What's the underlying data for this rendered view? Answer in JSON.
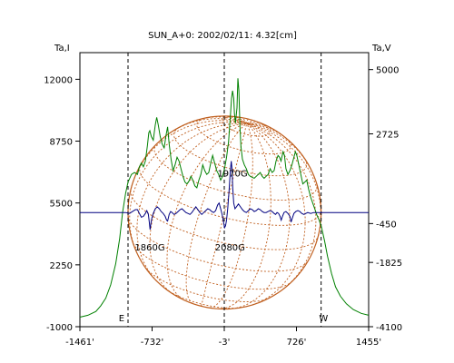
{
  "chart_data": {
    "type": "line",
    "title": "SUN_A+0: 2002/02/11: 4.32[cm]",
    "left_axis_label": "Ta,I",
    "right_axis_label": "Ta,V",
    "x_ticks": [
      {
        "value": -1461,
        "label": "-1461'"
      },
      {
        "value": -732,
        "label": "-732'"
      },
      {
        "value": -3,
        "label": "-3'"
      },
      {
        "value": 726,
        "label": "726'"
      },
      {
        "value": 1455,
        "label": "1455'"
      }
    ],
    "xlim": [
      -1461,
      1455
    ],
    "ylim_left": [
      -1000,
      13400
    ],
    "ylim_right": [
      -4100,
      5600
    ],
    "y_ticks_left": [
      {
        "value": 12000,
        "label": "12000"
      },
      {
        "value": 8750,
        "label": "8750"
      },
      {
        "value": 5500,
        "label": "5500"
      },
      {
        "value": 2250,
        "label": "2250"
      },
      {
        "value": -1000,
        "label": "-1000"
      }
    ],
    "y_ticks_right": [
      {
        "value": 5000,
        "label": "5000"
      },
      {
        "value": 2725,
        "label": "2725"
      },
      {
        "value": -450,
        "label": "-450"
      },
      {
        "value": -1825,
        "label": "-1825"
      },
      {
        "value": -4100,
        "label": "-4100"
      }
    ],
    "dashed_lines_x": [
      -975,
      -3,
      975
    ],
    "limb_labels": [
      {
        "text": "E",
        "x": -1040,
        "y_left": -1000
      },
      {
        "text": "W",
        "x": 1000,
        "y_left": -1000
      }
    ],
    "annotations": [
      {
        "text": "1970G",
        "x": 80,
        "y_left": 6900
      },
      {
        "text": "1860G",
        "x": -755,
        "y_left": 3000
      },
      {
        "text": "2080G",
        "x": 55,
        "y_left": 3000
      }
    ],
    "solar_disk": {
      "center_x": 0,
      "center_y_left": 5000,
      "radius_arcmin": 975
    },
    "colors": {
      "stokes_i": "#008000",
      "stokes_v": "#000080",
      "disk_grid": "#c06020",
      "axes": "#000000"
    },
    "series": [
      {
        "axis": "left",
        "points": [
          [
            -1461,
            -500
          ],
          [
            -1380,
            -400
          ],
          [
            -1300,
            -200
          ],
          [
            -1250,
            100
          ],
          [
            -1200,
            500
          ],
          [
            -1150,
            1200
          ],
          [
            -1100,
            2300
          ],
          [
            -1060,
            3600
          ],
          [
            -1030,
            5000
          ],
          [
            -1000,
            6000
          ],
          [
            -975,
            6600
          ],
          [
            -940,
            7000
          ],
          [
            -910,
            7100
          ],
          [
            -880,
            7000
          ],
          [
            -860,
            7400
          ],
          [
            -840,
            7600
          ],
          [
            -820,
            7400
          ],
          [
            -800,
            7700
          ],
          [
            -780,
            8500
          ],
          [
            -765,
            9200
          ],
          [
            -755,
            9300
          ],
          [
            -740,
            9000
          ],
          [
            -720,
            8800
          ],
          [
            -700,
            9600
          ],
          [
            -685,
            10000
          ],
          [
            -670,
            9600
          ],
          [
            -650,
            9000
          ],
          [
            -630,
            8600
          ],
          [
            -610,
            8400
          ],
          [
            -590,
            9100
          ],
          [
            -575,
            9500
          ],
          [
            -560,
            8600
          ],
          [
            -540,
            7800
          ],
          [
            -520,
            7200
          ],
          [
            -500,
            7500
          ],
          [
            -480,
            7900
          ],
          [
            -460,
            7700
          ],
          [
            -440,
            7300
          ],
          [
            -420,
            6900
          ],
          [
            -400,
            6600
          ],
          [
            -380,
            6500
          ],
          [
            -360,
            6650
          ],
          [
            -340,
            6900
          ],
          [
            -320,
            6700
          ],
          [
            -300,
            6400
          ],
          [
            -280,
            6300
          ],
          [
            -260,
            6700
          ],
          [
            -240,
            7000
          ],
          [
            -220,
            7500
          ],
          [
            -200,
            7200
          ],
          [
            -180,
            7000
          ],
          [
            -160,
            7100
          ],
          [
            -140,
            7600
          ],
          [
            -120,
            8000
          ],
          [
            -100,
            7600
          ],
          [
            -80,
            7200
          ],
          [
            -60,
            7000
          ],
          [
            -40,
            6700
          ],
          [
            -20,
            6900
          ],
          [
            0,
            7300
          ],
          [
            20,
            7900
          ],
          [
            40,
            8700
          ],
          [
            60,
            10200
          ],
          [
            70,
            11000
          ],
          [
            80,
            11400
          ],
          [
            92,
            11000
          ],
          [
            100,
            10200
          ],
          [
            110,
            9700
          ],
          [
            125,
            10500
          ],
          [
            135,
            12050
          ],
          [
            145,
            11400
          ],
          [
            155,
            9600
          ],
          [
            165,
            8500
          ],
          [
            180,
            7800
          ],
          [
            200,
            7500
          ],
          [
            220,
            7300
          ],
          [
            240,
            7000
          ],
          [
            260,
            6900
          ],
          [
            280,
            6850
          ],
          [
            300,
            6800
          ],
          [
            320,
            6900
          ],
          [
            340,
            7000
          ],
          [
            360,
            7100
          ],
          [
            380,
            6900
          ],
          [
            400,
            6800
          ],
          [
            420,
            6900
          ],
          [
            440,
            7000
          ],
          [
            460,
            7300
          ],
          [
            480,
            7100
          ],
          [
            500,
            7200
          ],
          [
            520,
            7700
          ],
          [
            540,
            8000
          ],
          [
            555,
            7900
          ],
          [
            570,
            7700
          ],
          [
            590,
            8200
          ],
          [
            605,
            8000
          ],
          [
            620,
            7300
          ],
          [
            640,
            7000
          ],
          [
            660,
            7200
          ],
          [
            680,
            7500
          ],
          [
            700,
            7900
          ],
          [
            715,
            8200
          ],
          [
            730,
            8000
          ],
          [
            750,
            7500
          ],
          [
            770,
            7000
          ],
          [
            790,
            6500
          ],
          [
            810,
            6600
          ],
          [
            830,
            6700
          ],
          [
            850,
            6200
          ],
          [
            870,
            5800
          ],
          [
            890,
            5500
          ],
          [
            910,
            5200
          ],
          [
            930,
            4900
          ],
          [
            955,
            4600
          ],
          [
            980,
            4200
          ],
          [
            1010,
            3500
          ],
          [
            1040,
            2700
          ],
          [
            1080,
            1800
          ],
          [
            1120,
            1100
          ],
          [
            1170,
            600
          ],
          [
            1230,
            200
          ],
          [
            1300,
            -100
          ],
          [
            1380,
            -300
          ],
          [
            1455,
            -400
          ]
        ]
      },
      {
        "axis": "left",
        "points": [
          [
            -1461,
            5000
          ],
          [
            -1100,
            5000
          ],
          [
            -1000,
            5000
          ],
          [
            -960,
            4950
          ],
          [
            -930,
            5050
          ],
          [
            -900,
            5150
          ],
          [
            -880,
            5150
          ],
          [
            -860,
            4950
          ],
          [
            -840,
            4750
          ],
          [
            -820,
            4800
          ],
          [
            -800,
            4950
          ],
          [
            -785,
            5100
          ],
          [
            -770,
            4900
          ],
          [
            -760,
            4500
          ],
          [
            -752,
            4100
          ],
          [
            -745,
            4400
          ],
          [
            -735,
            4700
          ],
          [
            -720,
            4950
          ],
          [
            -700,
            5200
          ],
          [
            -680,
            5300
          ],
          [
            -660,
            5200
          ],
          [
            -640,
            5050
          ],
          [
            -620,
            4950
          ],
          [
            -600,
            4800
          ],
          [
            -585,
            4600
          ],
          [
            -575,
            4550
          ],
          [
            -560,
            4900
          ],
          [
            -545,
            5050
          ],
          [
            -530,
            5000
          ],
          [
            -510,
            4900
          ],
          [
            -490,
            4950
          ],
          [
            -470,
            5050
          ],
          [
            -450,
            5150
          ],
          [
            -430,
            5200
          ],
          [
            -410,
            5100
          ],
          [
            -390,
            5000
          ],
          [
            -370,
            4950
          ],
          [
            -350,
            4900
          ],
          [
            -330,
            5000
          ],
          [
            -310,
            5150
          ],
          [
            -290,
            5300
          ],
          [
            -270,
            5150
          ],
          [
            -250,
            5000
          ],
          [
            -230,
            4900
          ],
          [
            -210,
            5000
          ],
          [
            -190,
            5100
          ],
          [
            -170,
            5200
          ],
          [
            -150,
            5150
          ],
          [
            -130,
            5050
          ],
          [
            -110,
            5000
          ],
          [
            -90,
            5100
          ],
          [
            -70,
            5400
          ],
          [
            -55,
            5500
          ],
          [
            -40,
            5200
          ],
          [
            -25,
            4900
          ],
          [
            -10,
            4500
          ],
          [
            0,
            4200
          ],
          [
            10,
            4300
          ],
          [
            20,
            4600
          ],
          [
            32,
            5200
          ],
          [
            45,
            6100
          ],
          [
            58,
            7200
          ],
          [
            68,
            7700
          ],
          [
            75,
            7300
          ],
          [
            82,
            6300
          ],
          [
            92,
            5500
          ],
          [
            105,
            5200
          ],
          [
            120,
            5300
          ],
          [
            140,
            5450
          ],
          [
            160,
            5300
          ],
          [
            180,
            5150
          ],
          [
            200,
            5050
          ],
          [
            220,
            5000
          ],
          [
            240,
            5100
          ],
          [
            260,
            5200
          ],
          [
            280,
            5150
          ],
          [
            300,
            5050
          ],
          [
            320,
            5100
          ],
          [
            340,
            5200
          ],
          [
            360,
            5150
          ],
          [
            380,
            5050
          ],
          [
            400,
            5000
          ],
          [
            420,
            5000
          ],
          [
            440,
            5050
          ],
          [
            460,
            5100
          ],
          [
            480,
            5050
          ],
          [
            500,
            4950
          ],
          [
            515,
            4900
          ],
          [
            530,
            5000
          ],
          [
            545,
            4950
          ],
          [
            560,
            4800
          ],
          [
            572,
            4600
          ],
          [
            585,
            4800
          ],
          [
            600,
            5000
          ],
          [
            620,
            5050
          ],
          [
            640,
            4950
          ],
          [
            660,
            4800
          ],
          [
            672,
            4500
          ],
          [
            684,
            4700
          ],
          [
            700,
            4950
          ],
          [
            720,
            5050
          ],
          [
            740,
            5100
          ],
          [
            760,
            5050
          ],
          [
            780,
            4950
          ],
          [
            800,
            4900
          ],
          [
            820,
            4950
          ],
          [
            840,
            5000
          ],
          [
            870,
            4950
          ],
          [
            900,
            5000
          ],
          [
            950,
            5000
          ],
          [
            1455,
            5000
          ]
        ]
      }
    ]
  }
}
